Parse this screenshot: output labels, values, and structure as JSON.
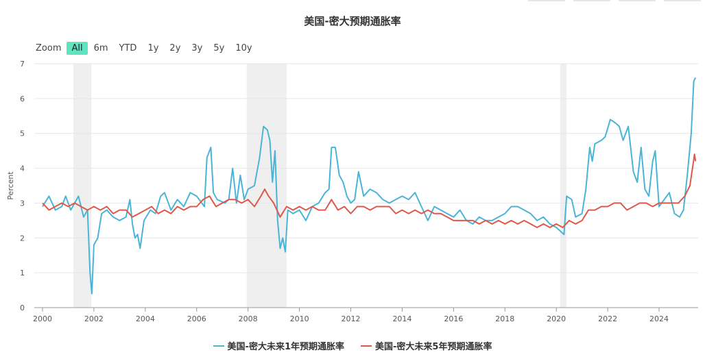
{
  "chart_data": {
    "type": "line",
    "title": "美国-密大预期通胀率",
    "ylabel": "Percent",
    "ylim": [
      0,
      7
    ],
    "yticks": [
      0,
      1,
      2,
      3,
      4,
      5,
      6,
      7
    ],
    "xlim": [
      2000,
      2025.5
    ],
    "xticks": [
      2000,
      2002,
      2004,
      2006,
      2008,
      2010,
      2012,
      2014,
      2016,
      2018,
      2020,
      2022,
      2024
    ],
    "legend_position": "bottom",
    "grid": true,
    "recessions": [
      [
        2001.2,
        2001.9
      ],
      [
        2007.95,
        2009.5
      ],
      [
        2020.15,
        2020.4
      ]
    ],
    "series": [
      {
        "name": "美国-密大未来1年预期通胀率",
        "color": "#4ab4d8",
        "points": [
          [
            2000.0,
            2.9
          ],
          [
            2000.25,
            3.2
          ],
          [
            2000.5,
            2.8
          ],
          [
            2000.75,
            2.9
          ],
          [
            2000.9,
            3.2
          ],
          [
            2001.1,
            2.8
          ],
          [
            2001.4,
            3.2
          ],
          [
            2001.6,
            2.6
          ],
          [
            2001.75,
            2.8
          ],
          [
            2001.85,
            1.0
          ],
          [
            2001.92,
            0.4
          ],
          [
            2002.0,
            1.8
          ],
          [
            2002.15,
            2.0
          ],
          [
            2002.3,
            2.7
          ],
          [
            2002.5,
            2.8
          ],
          [
            2002.75,
            2.6
          ],
          [
            2003.0,
            2.5
          ],
          [
            2003.25,
            2.6
          ],
          [
            2003.4,
            3.1
          ],
          [
            2003.5,
            2.4
          ],
          [
            2003.6,
            2.0
          ],
          [
            2003.7,
            2.1
          ],
          [
            2003.8,
            1.7
          ],
          [
            2003.95,
            2.5
          ],
          [
            2004.2,
            2.8
          ],
          [
            2004.4,
            2.7
          ],
          [
            2004.6,
            3.2
          ],
          [
            2004.75,
            3.3
          ],
          [
            2005.0,
            2.8
          ],
          [
            2005.25,
            3.1
          ],
          [
            2005.5,
            2.9
          ],
          [
            2005.75,
            3.3
          ],
          [
            2006.0,
            3.2
          ],
          [
            2006.3,
            2.9
          ],
          [
            2006.4,
            4.3
          ],
          [
            2006.55,
            4.6
          ],
          [
            2006.65,
            3.3
          ],
          [
            2006.8,
            3.1
          ],
          [
            2007.1,
            3.0
          ],
          [
            2007.25,
            3.1
          ],
          [
            2007.4,
            4.0
          ],
          [
            2007.55,
            3.0
          ],
          [
            2007.7,
            3.8
          ],
          [
            2007.85,
            3.1
          ],
          [
            2008.0,
            3.4
          ],
          [
            2008.25,
            3.5
          ],
          [
            2008.45,
            4.3
          ],
          [
            2008.6,
            5.2
          ],
          [
            2008.75,
            5.1
          ],
          [
            2008.85,
            4.8
          ],
          [
            2008.95,
            3.6
          ],
          [
            2009.05,
            4.5
          ],
          [
            2009.15,
            2.5
          ],
          [
            2009.25,
            1.7
          ],
          [
            2009.35,
            2.0
          ],
          [
            2009.45,
            1.6
          ],
          [
            2009.55,
            2.8
          ],
          [
            2009.75,
            2.7
          ],
          [
            2010.0,
            2.8
          ],
          [
            2010.25,
            2.5
          ],
          [
            2010.5,
            2.9
          ],
          [
            2010.75,
            3.0
          ],
          [
            2011.0,
            3.3
          ],
          [
            2011.15,
            3.4
          ],
          [
            2011.25,
            4.6
          ],
          [
            2011.4,
            4.6
          ],
          [
            2011.55,
            3.8
          ],
          [
            2011.7,
            3.6
          ],
          [
            2011.85,
            3.2
          ],
          [
            2012.0,
            3.0
          ],
          [
            2012.15,
            3.1
          ],
          [
            2012.3,
            3.9
          ],
          [
            2012.5,
            3.2
          ],
          [
            2012.75,
            3.4
          ],
          [
            2013.0,
            3.3
          ],
          [
            2013.25,
            3.1
          ],
          [
            2013.5,
            3.0
          ],
          [
            2013.75,
            3.1
          ],
          [
            2014.0,
            3.2
          ],
          [
            2014.25,
            3.1
          ],
          [
            2014.5,
            3.3
          ],
          [
            2014.75,
            2.9
          ],
          [
            2015.0,
            2.5
          ],
          [
            2015.25,
            2.9
          ],
          [
            2015.5,
            2.8
          ],
          [
            2015.75,
            2.7
          ],
          [
            2016.0,
            2.6
          ],
          [
            2016.25,
            2.8
          ],
          [
            2016.5,
            2.5
          ],
          [
            2016.75,
            2.4
          ],
          [
            2017.0,
            2.6
          ],
          [
            2017.25,
            2.5
          ],
          [
            2017.5,
            2.5
          ],
          [
            2017.75,
            2.6
          ],
          [
            2018.0,
            2.7
          ],
          [
            2018.25,
            2.9
          ],
          [
            2018.5,
            2.9
          ],
          [
            2018.75,
            2.8
          ],
          [
            2019.0,
            2.7
          ],
          [
            2019.25,
            2.5
          ],
          [
            2019.5,
            2.6
          ],
          [
            2019.75,
            2.4
          ],
          [
            2020.0,
            2.3
          ],
          [
            2020.15,
            2.2
          ],
          [
            2020.3,
            2.1
          ],
          [
            2020.4,
            3.2
          ],
          [
            2020.6,
            3.1
          ],
          [
            2020.75,
            2.6
          ],
          [
            2021.0,
            2.7
          ],
          [
            2021.15,
            3.4
          ],
          [
            2021.3,
            4.6
          ],
          [
            2021.4,
            4.2
          ],
          [
            2021.5,
            4.7
          ],
          [
            2021.75,
            4.8
          ],
          [
            2021.9,
            4.9
          ],
          [
            2022.1,
            5.4
          ],
          [
            2022.3,
            5.3
          ],
          [
            2022.45,
            5.2
          ],
          [
            2022.6,
            4.8
          ],
          [
            2022.8,
            5.2
          ],
          [
            2023.0,
            3.9
          ],
          [
            2023.15,
            3.6
          ],
          [
            2023.3,
            4.6
          ],
          [
            2023.45,
            3.4
          ],
          [
            2023.6,
            3.2
          ],
          [
            2023.75,
            4.2
          ],
          [
            2023.85,
            4.5
          ],
          [
            2024.0,
            2.9
          ],
          [
            2024.2,
            3.1
          ],
          [
            2024.4,
            3.3
          ],
          [
            2024.6,
            2.7
          ],
          [
            2024.8,
            2.6
          ],
          [
            2024.95,
            2.8
          ],
          [
            2025.1,
            3.8
          ],
          [
            2025.25,
            5.0
          ],
          [
            2025.35,
            6.5
          ],
          [
            2025.42,
            6.6
          ]
        ]
      },
      {
        "name": "美国-密大未来5年预期通胀率",
        "color": "#e0574a",
        "points": [
          [
            2000.0,
            3.0
          ],
          [
            2000.25,
            2.8
          ],
          [
            2000.5,
            2.9
          ],
          [
            2000.75,
            3.0
          ],
          [
            2001.0,
            2.9
          ],
          [
            2001.25,
            3.0
          ],
          [
            2001.5,
            2.9
          ],
          [
            2001.75,
            2.8
          ],
          [
            2002.0,
            2.9
          ],
          [
            2002.25,
            2.8
          ],
          [
            2002.5,
            2.9
          ],
          [
            2002.75,
            2.7
          ],
          [
            2003.0,
            2.8
          ],
          [
            2003.25,
            2.8
          ],
          [
            2003.5,
            2.6
          ],
          [
            2003.75,
            2.7
          ],
          [
            2004.0,
            2.8
          ],
          [
            2004.25,
            2.9
          ],
          [
            2004.5,
            2.7
          ],
          [
            2004.75,
            2.8
          ],
          [
            2005.0,
            2.7
          ],
          [
            2005.25,
            2.9
          ],
          [
            2005.5,
            2.8
          ],
          [
            2005.75,
            2.9
          ],
          [
            2006.0,
            2.9
          ],
          [
            2006.25,
            3.1
          ],
          [
            2006.5,
            3.2
          ],
          [
            2006.75,
            2.9
          ],
          [
            2007.0,
            3.0
          ],
          [
            2007.25,
            3.1
          ],
          [
            2007.5,
            3.1
          ],
          [
            2007.75,
            3.0
          ],
          [
            2008.0,
            3.1
          ],
          [
            2008.25,
            2.9
          ],
          [
            2008.5,
            3.2
          ],
          [
            2008.65,
            3.4
          ],
          [
            2008.8,
            3.2
          ],
          [
            2009.0,
            3.0
          ],
          [
            2009.25,
            2.6
          ],
          [
            2009.5,
            2.9
          ],
          [
            2009.75,
            2.8
          ],
          [
            2010.0,
            2.9
          ],
          [
            2010.25,
            2.8
          ],
          [
            2010.5,
            2.9
          ],
          [
            2010.75,
            2.8
          ],
          [
            2011.0,
            2.8
          ],
          [
            2011.25,
            3.1
          ],
          [
            2011.5,
            2.8
          ],
          [
            2011.75,
            2.9
          ],
          [
            2012.0,
            2.7
          ],
          [
            2012.25,
            2.9
          ],
          [
            2012.5,
            2.9
          ],
          [
            2012.75,
            2.8
          ],
          [
            2013.0,
            2.9
          ],
          [
            2013.25,
            2.9
          ],
          [
            2013.5,
            2.9
          ],
          [
            2013.75,
            2.7
          ],
          [
            2014.0,
            2.8
          ],
          [
            2014.25,
            2.7
          ],
          [
            2014.5,
            2.8
          ],
          [
            2014.75,
            2.7
          ],
          [
            2015.0,
            2.8
          ],
          [
            2015.25,
            2.7
          ],
          [
            2015.5,
            2.7
          ],
          [
            2015.75,
            2.6
          ],
          [
            2016.0,
            2.5
          ],
          [
            2016.25,
            2.5
          ],
          [
            2016.5,
            2.5
          ],
          [
            2016.75,
            2.5
          ],
          [
            2017.0,
            2.4
          ],
          [
            2017.25,
            2.5
          ],
          [
            2017.5,
            2.4
          ],
          [
            2017.75,
            2.5
          ],
          [
            2018.0,
            2.4
          ],
          [
            2018.25,
            2.5
          ],
          [
            2018.5,
            2.4
          ],
          [
            2018.75,
            2.5
          ],
          [
            2019.0,
            2.4
          ],
          [
            2019.25,
            2.3
          ],
          [
            2019.5,
            2.4
          ],
          [
            2019.75,
            2.3
          ],
          [
            2020.0,
            2.4
          ],
          [
            2020.25,
            2.3
          ],
          [
            2020.5,
            2.5
          ],
          [
            2020.75,
            2.4
          ],
          [
            2021.0,
            2.5
          ],
          [
            2021.25,
            2.8
          ],
          [
            2021.5,
            2.8
          ],
          [
            2021.75,
            2.9
          ],
          [
            2022.0,
            2.9
          ],
          [
            2022.25,
            3.0
          ],
          [
            2022.5,
            3.0
          ],
          [
            2022.75,
            2.8
          ],
          [
            2023.0,
            2.9
          ],
          [
            2023.25,
            3.0
          ],
          [
            2023.5,
            3.0
          ],
          [
            2023.75,
            2.9
          ],
          [
            2024.0,
            3.0
          ],
          [
            2024.25,
            3.0
          ],
          [
            2024.5,
            3.0
          ],
          [
            2024.75,
            3.0
          ],
          [
            2025.0,
            3.2
          ],
          [
            2025.2,
            3.5
          ],
          [
            2025.32,
            4.1
          ],
          [
            2025.38,
            4.4
          ],
          [
            2025.42,
            4.2
          ]
        ]
      }
    ]
  },
  "zoom": {
    "label": "Zoom",
    "buttons": [
      "All",
      "6m",
      "YTD",
      "1y",
      "2y",
      "3y",
      "5y",
      "10y"
    ],
    "active": "All"
  }
}
